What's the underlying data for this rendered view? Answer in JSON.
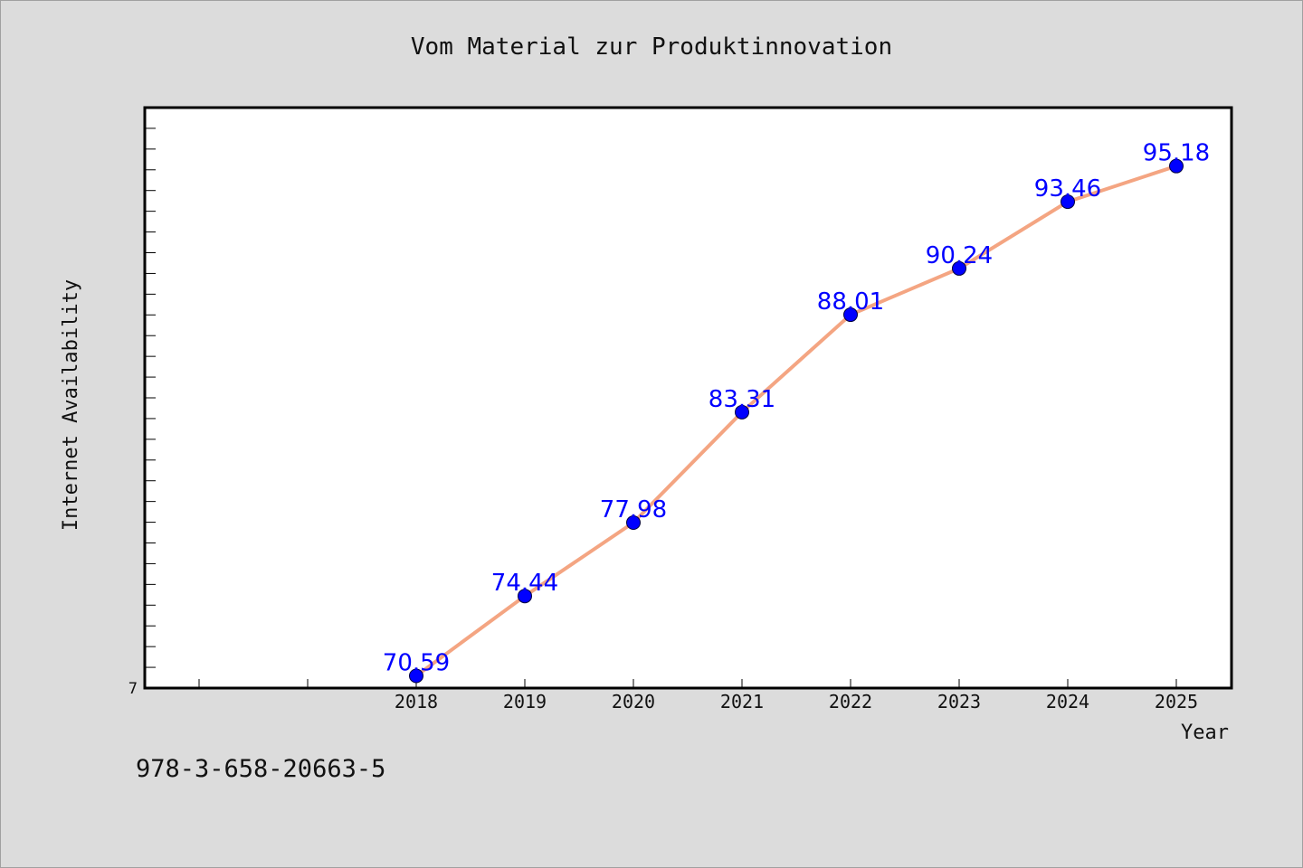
{
  "chart_data": {
    "type": "line",
    "title": "Vom Material zur Produktinnovation",
    "xlabel": "Year",
    "ylabel": "Internet Availability",
    "categories": [
      "2018",
      "2019",
      "2020",
      "2021",
      "2022",
      "2023",
      "2024",
      "2025"
    ],
    "series": [
      {
        "values": [
          70.59,
          74.44,
          77.98,
          83.31,
          88.01,
          90.24,
          93.46,
          95.18
        ]
      }
    ],
    "ylim": [
      70,
      98
    ],
    "y_tick_labels": [
      "7"
    ],
    "x_axis_leading_slots": 2,
    "grid": false,
    "legend": "none",
    "colors": {
      "line": "#f4a582",
      "marker": "#0000ff",
      "data_label": "#0000ff",
      "plot_background": "#ffffff",
      "figure_background": "#dcdcdc"
    }
  },
  "footnote": "978-3-658-20663-5"
}
